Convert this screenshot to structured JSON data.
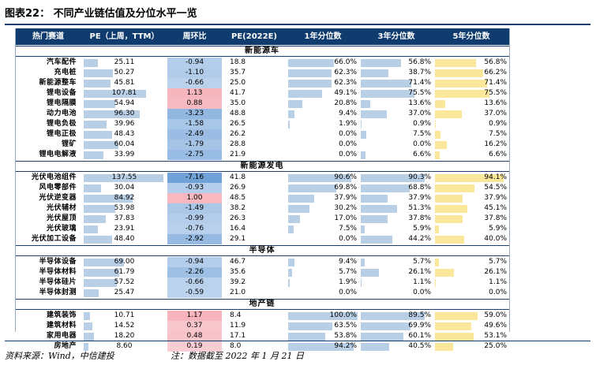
{
  "title": "图表22：  不同产业链估值及分位水平一览",
  "columns": [
    "热门赛道",
    "PE（上周，TTM）",
    "周环比",
    "PE(2022E)",
    "1年分位数",
    "3年分位数",
    "5年分位数"
  ],
  "sections": [
    {
      "name": "新能源车",
      "rows": [
        {
          "name": "汽车配件",
          "pe_ttm": "25.11",
          "pe_ttm_val": 25.11,
          "wow": "-0.94",
          "wow_val": -0.94,
          "pe2022": "18.8",
          "p1": "66.0%",
          "p1_val": 66.0,
          "p3": "56.8%",
          "p3_val": 56.8,
          "p5": "56.8%",
          "p5_val": 56.8
        },
        {
          "name": "充电桩",
          "pe_ttm": "50.27",
          "pe_ttm_val": 50.27,
          "wow": "-1.10",
          "wow_val": -1.1,
          "pe2022": "35.7",
          "p1": "62.3%",
          "p1_val": 62.3,
          "p3": "38.7%",
          "p3_val": 38.7,
          "p5": "66.2%",
          "p5_val": 66.2
        },
        {
          "name": "新能源整车",
          "pe_ttm": "45.81",
          "pe_ttm_val": 45.81,
          "wow": "-0.66",
          "wow_val": -0.66,
          "pe2022": "25.0",
          "p1": "62.3%",
          "p1_val": 62.3,
          "p3": "71.4%",
          "p3_val": 71.4,
          "p5": "71.4%",
          "p5_val": 71.4
        },
        {
          "name": "锂电设备",
          "pe_ttm": "107.81",
          "pe_ttm_val": 107.81,
          "wow": "1.13",
          "wow_val": 1.13,
          "pe2022": "41.7",
          "p1": "49.1%",
          "p1_val": 49.1,
          "p3": "75.5%",
          "p3_val": 75.5,
          "p5": "75.5%",
          "p5_val": 75.5
        },
        {
          "name": "锂电隔膜",
          "pe_ttm": "54.94",
          "pe_ttm_val": 54.94,
          "wow": "0.88",
          "wow_val": 0.88,
          "pe2022": "35.0",
          "p1": "20.8%",
          "p1_val": 20.8,
          "p3": "13.6%",
          "p3_val": 13.6,
          "p5": "13.6%",
          "p5_val": 13.6
        },
        {
          "name": "动力电池",
          "pe_ttm": "96.30",
          "pe_ttm_val": 96.3,
          "wow": "-3.23",
          "wow_val": -3.23,
          "pe2022": "48.8",
          "p1": "9.4%",
          "p1_val": 9.4,
          "p3": "37.0%",
          "p3_val": 37.0,
          "p5": "37.0%",
          "p5_val": 37.0
        },
        {
          "name": "锂电负极",
          "pe_ttm": "39.96",
          "pe_ttm_val": 39.96,
          "wow": "-1.58",
          "wow_val": -1.58,
          "pe2022": "26.5",
          "p1": "1.9%",
          "p1_val": 1.9,
          "p3": "0.9%",
          "p3_val": 0.9,
          "p5": "0.9%",
          "p5_val": 0.9
        },
        {
          "name": "锂电正极",
          "pe_ttm": "48.43",
          "pe_ttm_val": 48.43,
          "wow": "-2.49",
          "wow_val": -2.49,
          "pe2022": "26.2",
          "p1": "0.0%",
          "p1_val": 0.0,
          "p3": "7.5%",
          "p3_val": 7.5,
          "p5": "7.5%",
          "p5_val": 7.5
        },
        {
          "name": "锂矿",
          "pe_ttm": "60.04",
          "pe_ttm_val": 60.04,
          "wow": "-1.79",
          "wow_val": -1.79,
          "pe2022": "28.8",
          "p1": "0.0%",
          "p1_val": 0.0,
          "p3": "0.0%",
          "p3_val": 0.0,
          "p5": "16.2%",
          "p5_val": 16.2
        },
        {
          "name": "锂电电解液",
          "pe_ttm": "33.99",
          "pe_ttm_val": 33.99,
          "wow": "-2.75",
          "wow_val": -2.75,
          "pe2022": "21.9",
          "p1": "0.0%",
          "p1_val": 0.0,
          "p3": "6.6%",
          "p3_val": 6.6,
          "p5": "6.6%",
          "p5_val": 6.6
        }
      ]
    },
    {
      "name": "新能源发电",
      "rows": [
        {
          "name": "光伏电池组件",
          "pe_ttm": "137.55",
          "pe_ttm_val": 137.55,
          "wow": "-7.16",
          "wow_val": -7.16,
          "pe2022": "41.8",
          "p1": "90.6%",
          "p1_val": 90.6,
          "p3": "90.3%",
          "p3_val": 90.3,
          "p5": "94.1%",
          "p5_val": 94.1
        },
        {
          "name": "风电零部件",
          "pe_ttm": "30.04",
          "pe_ttm_val": 30.04,
          "wow": "-0.93",
          "wow_val": -0.93,
          "pe2022": "26.9",
          "p1": "69.8%",
          "p1_val": 69.8,
          "p3": "68.8%",
          "p3_val": 68.8,
          "p5": "54.5%",
          "p5_val": 54.5
        },
        {
          "name": "光伏逆变器",
          "pe_ttm": "84.92",
          "pe_ttm_val": 84.92,
          "wow": "1.00",
          "wow_val": 1.0,
          "pe2022": "48.5",
          "p1": "37.9%",
          "p1_val": 37.9,
          "p3": "37.9%",
          "p3_val": 37.9,
          "p5": "37.9%",
          "p5_val": 37.9
        },
        {
          "name": "光伏辅材",
          "pe_ttm": "53.98",
          "pe_ttm_val": 53.98,
          "wow": "-1.49",
          "wow_val": -1.49,
          "pe2022": "38.2",
          "p1": "30.2%",
          "p1_val": 30.2,
          "p3": "51.3%",
          "p3_val": 51.3,
          "p5": "45.1%",
          "p5_val": 45.1
        },
        {
          "name": "光伏屋顶",
          "pe_ttm": "37.83",
          "pe_ttm_val": 37.83,
          "wow": "-0.99",
          "wow_val": -0.99,
          "pe2022": "26.3",
          "p1": "17.0%",
          "p1_val": 17.0,
          "p3": "37.8%",
          "p3_val": 37.8,
          "p5": "37.8%",
          "p5_val": 37.8
        },
        {
          "name": "光伏玻璃",
          "pe_ttm": "23.91",
          "pe_ttm_val": 23.91,
          "wow": "-0.76",
          "wow_val": -0.76,
          "pe2022": "16.4",
          "p1": "7.5%",
          "p1_val": 7.5,
          "p3": "5.9%",
          "p3_val": 5.9,
          "p5": "5.9%",
          "p5_val": 5.9
        },
        {
          "name": "光伏加工设备",
          "pe_ttm": "48.40",
          "pe_ttm_val": 48.4,
          "wow": "-2.92",
          "wow_val": -2.92,
          "pe2022": "29.1",
          "p1": "0.0%",
          "p1_val": 0.0,
          "p3": "44.2%",
          "p3_val": 44.2,
          "p5": "40.0%",
          "p5_val": 40.0
        }
      ]
    },
    {
      "name": "半导体",
      "rows": [
        {
          "name": "半导体设备",
          "pe_ttm": "69.00",
          "pe_ttm_val": 69.0,
          "wow": "-0.94",
          "wow_val": -0.94,
          "pe2022": "46.7",
          "p1": "9.4%",
          "p1_val": 9.4,
          "p3": "5.7%",
          "p3_val": 5.7,
          "p5": "5.7%",
          "p5_val": 5.7
        },
        {
          "name": "半导体材料",
          "pe_ttm": "61.79",
          "pe_ttm_val": 61.79,
          "wow": "-2.26",
          "wow_val": -2.26,
          "pe2022": "35.6",
          "p1": "5.7%",
          "p1_val": 5.7,
          "p3": "26.1%",
          "p3_val": 26.1,
          "p5": "26.1%",
          "p5_val": 26.1
        },
        {
          "name": "半导体硅片",
          "pe_ttm": "57.52",
          "pe_ttm_val": 57.52,
          "wow": "-0.66",
          "wow_val": -0.66,
          "pe2022": "39.2",
          "p1": "1.9%",
          "p1_val": 1.9,
          "p3": "1.1%",
          "p3_val": 1.1,
          "p5": "1.1%",
          "p5_val": 1.1
        },
        {
          "name": "半导体封测",
          "pe_ttm": "25.47",
          "pe_ttm_val": 25.47,
          "wow": "-0.59",
          "wow_val": -0.59,
          "pe2022": "21.0",
          "p1": "0.0%",
          "p1_val": 0.0,
          "p3": "0.0%",
          "p3_val": 0.0,
          "p5": "0.0%",
          "p5_val": 0.0
        }
      ]
    },
    {
      "name": "地产链",
      "rows": [
        {
          "name": "建筑装饰",
          "pe_ttm": "10.71",
          "pe_ttm_val": 10.71,
          "wow": "1.17",
          "wow_val": 1.17,
          "pe2022": "8.4",
          "p1": "100.0%",
          "p1_val": 100.0,
          "p3": "89.5%",
          "p3_val": 89.5,
          "p5": "59.0%",
          "p5_val": 59.0
        },
        {
          "name": "建筑材料",
          "pe_ttm": "14.52",
          "pe_ttm_val": 14.52,
          "wow": "0.37",
          "wow_val": 0.37,
          "pe2022": "11.9",
          "p1": "63.5%",
          "p1_val": 63.5,
          "p3": "69.9%",
          "p3_val": 69.9,
          "p5": "49.6%",
          "p5_val": 49.6
        },
        {
          "name": "家用电器",
          "pe_ttm": "18.20",
          "pe_ttm_val": 18.2,
          "wow": "0.48",
          "wow_val": 0.48,
          "pe2022": "17.1",
          "p1": "53.8%",
          "p1_val": 53.8,
          "p3": "60.1%",
          "p3_val": 60.1,
          "p5": "53.1%",
          "p5_val": 53.1
        },
        {
          "name": "房地产",
          "pe_ttm": "8.60",
          "pe_ttm_val": 8.6,
          "wow": "0.19",
          "wow_val": 0.19,
          "pe2022": "8.0",
          "p1": "94.2%",
          "p1_val": 94.2,
          "p3": "40.5%",
          "p3_val": 40.5,
          "p5": "25.0%",
          "p5_val": 25.0
        }
      ]
    }
  ],
  "footer": {
    "source": "资料来源：Wind，中信建投",
    "note": "注：数据截至 2022 年 1 月 21 日"
  },
  "colors": {
    "header_bg": "#0f3b6e",
    "bar_blue": "#b8cfe6",
    "bar_yellow": "#fbe79a",
    "wow_positive": "#f4a6ae",
    "wow_negative": "#8fb4dd"
  }
}
